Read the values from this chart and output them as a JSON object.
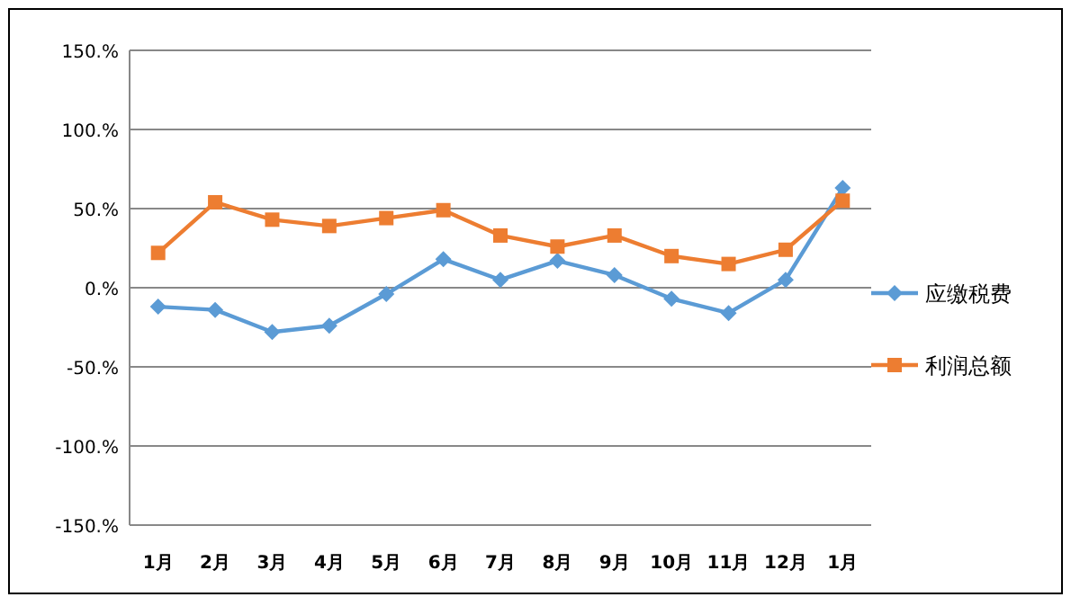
{
  "chart_data": {
    "type": "line",
    "categories": [
      "1月",
      "2月",
      "3月",
      "4月",
      "5月",
      "6月",
      "7月",
      "8月",
      "9月",
      "10月",
      "11月",
      "12月",
      "1月"
    ],
    "series": [
      {
        "name": "应缴税费",
        "color": "#5b9bd5",
        "marker": "diamond",
        "values": [
          -12,
          -14,
          -28,
          -24,
          -4,
          18,
          5,
          17,
          8,
          -7,
          -16,
          5,
          63
        ]
      },
      {
        "name": "利润总额",
        "color": "#ed7d31",
        "marker": "square",
        "values": [
          22,
          54,
          43,
          39,
          44,
          49,
          33,
          26,
          33,
          20,
          15,
          24,
          55
        ]
      }
    ],
    "ylim": [
      -150,
      150
    ],
    "yticks": [
      {
        "value": -150,
        "label": "-150.%"
      },
      {
        "value": -100,
        "label": "-100.%"
      },
      {
        "value": -50,
        "label": "-50.%"
      },
      {
        "value": 0,
        "label": "0.%"
      },
      {
        "value": 50,
        "label": "50.%"
      },
      {
        "value": 100,
        "label": "100.%"
      },
      {
        "value": 150,
        "label": "150.%"
      }
    ],
    "grid": "y",
    "legend": "right",
    "line_style": "solid"
  }
}
